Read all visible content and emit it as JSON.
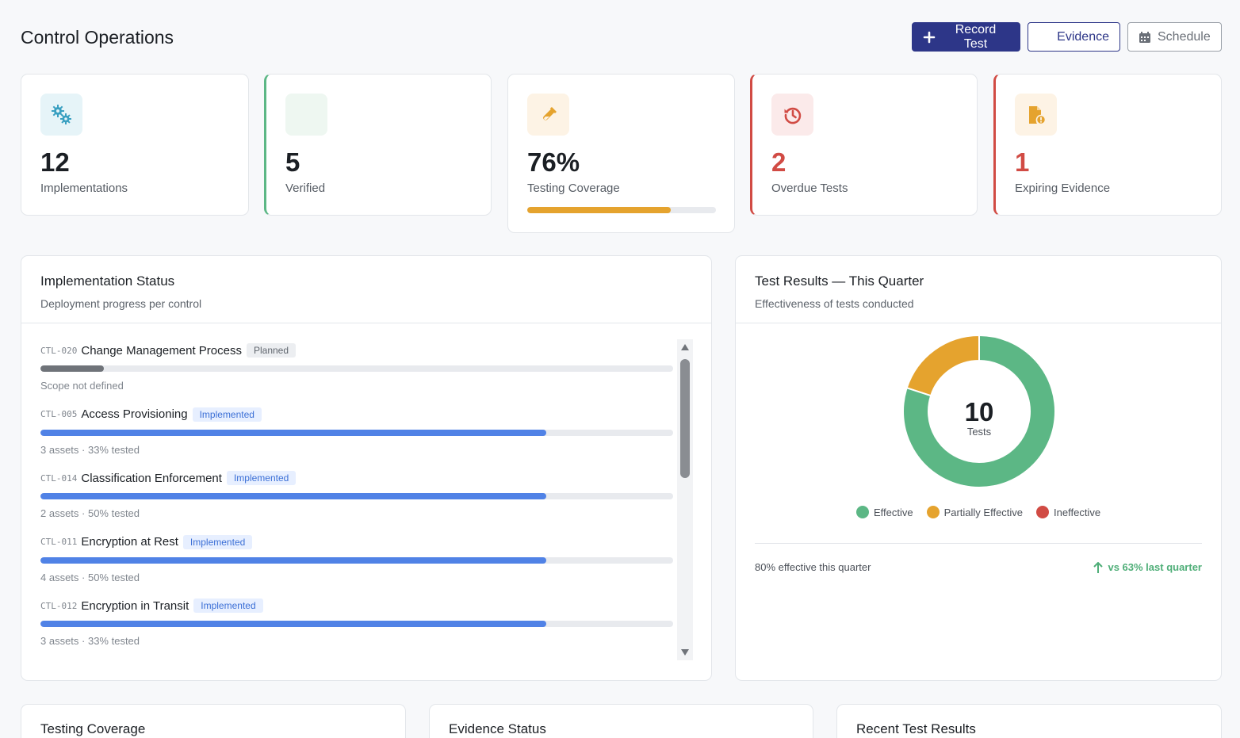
{
  "page": {
    "title": "Control Operations"
  },
  "toolbar": {
    "record_label": "Record Test",
    "evidence_label": "Evidence",
    "schedule_label": "Schedule"
  },
  "stats": [
    {
      "value": "12",
      "label": "Implementations",
      "icon": "gears-icon",
      "icon_bg": "#e6f4f8",
      "icon_color": "#3aa0c1"
    },
    {
      "value": "5",
      "label": "Verified",
      "icon": "check-icon",
      "icon_bg": "#eef7f1",
      "icon_color": "#5cb785"
    },
    {
      "value": "76%",
      "label": "Testing Coverage",
      "icon": "flask-icon",
      "icon_bg": "#fdf3e5",
      "icon_color": "#e5a32e",
      "progress": 76
    },
    {
      "value": "2",
      "label": "Overdue Tests",
      "icon": "history-icon",
      "icon_bg": "#fbeaea",
      "icon_color": "#d14b44"
    },
    {
      "value": "1",
      "label": "Expiring Evidence",
      "icon": "file-alert-icon",
      "icon_bg": "#fdf3e5",
      "icon_color": "#e5a32e"
    }
  ],
  "implementation": {
    "title": "Implementation Status",
    "subtitle": "Deployment progress per control",
    "items": [
      {
        "code": "CTL-020",
        "name": "Change Management Process",
        "status": "Planned",
        "progress": 10,
        "meta": "Scope not defined"
      },
      {
        "code": "CTL-005",
        "name": "Access Provisioning",
        "status": "Implemented",
        "progress": 80,
        "meta": "3 assets · 33% tested"
      },
      {
        "code": "CTL-014",
        "name": "Classification Enforcement",
        "status": "Implemented",
        "progress": 80,
        "meta": "2 assets · 50% tested"
      },
      {
        "code": "CTL-011",
        "name": "Encryption at Rest",
        "status": "Implemented",
        "progress": 80,
        "meta": "4 assets · 50% tested"
      },
      {
        "code": "CTL-012",
        "name": "Encryption in Transit",
        "status": "Implemented",
        "progress": 80,
        "meta": "3 assets · 33% tested"
      }
    ]
  },
  "results": {
    "title": "Test Results — This Quarter",
    "subtitle": "Effectiveness of tests conducted",
    "total": "10",
    "total_label": "Tests",
    "segments": [
      {
        "name": "Effective",
        "value": 8,
        "color": "#5cb785"
      },
      {
        "name": "Partially Effective",
        "value": 2,
        "color": "#e5a32e"
      },
      {
        "name": "Ineffective",
        "value": 0,
        "color": "#d14b44"
      }
    ],
    "summary": "80% effective this quarter",
    "comparison": "vs 63% last quarter"
  },
  "bottom": {
    "coverage_title": "Testing Coverage",
    "evidence_title": "Evidence Status",
    "recent_title": "Recent Test Results"
  },
  "colors": {
    "primary": "#2d3688",
    "progress_blue": "#5082e6",
    "progress_gray": "#6f7379"
  }
}
